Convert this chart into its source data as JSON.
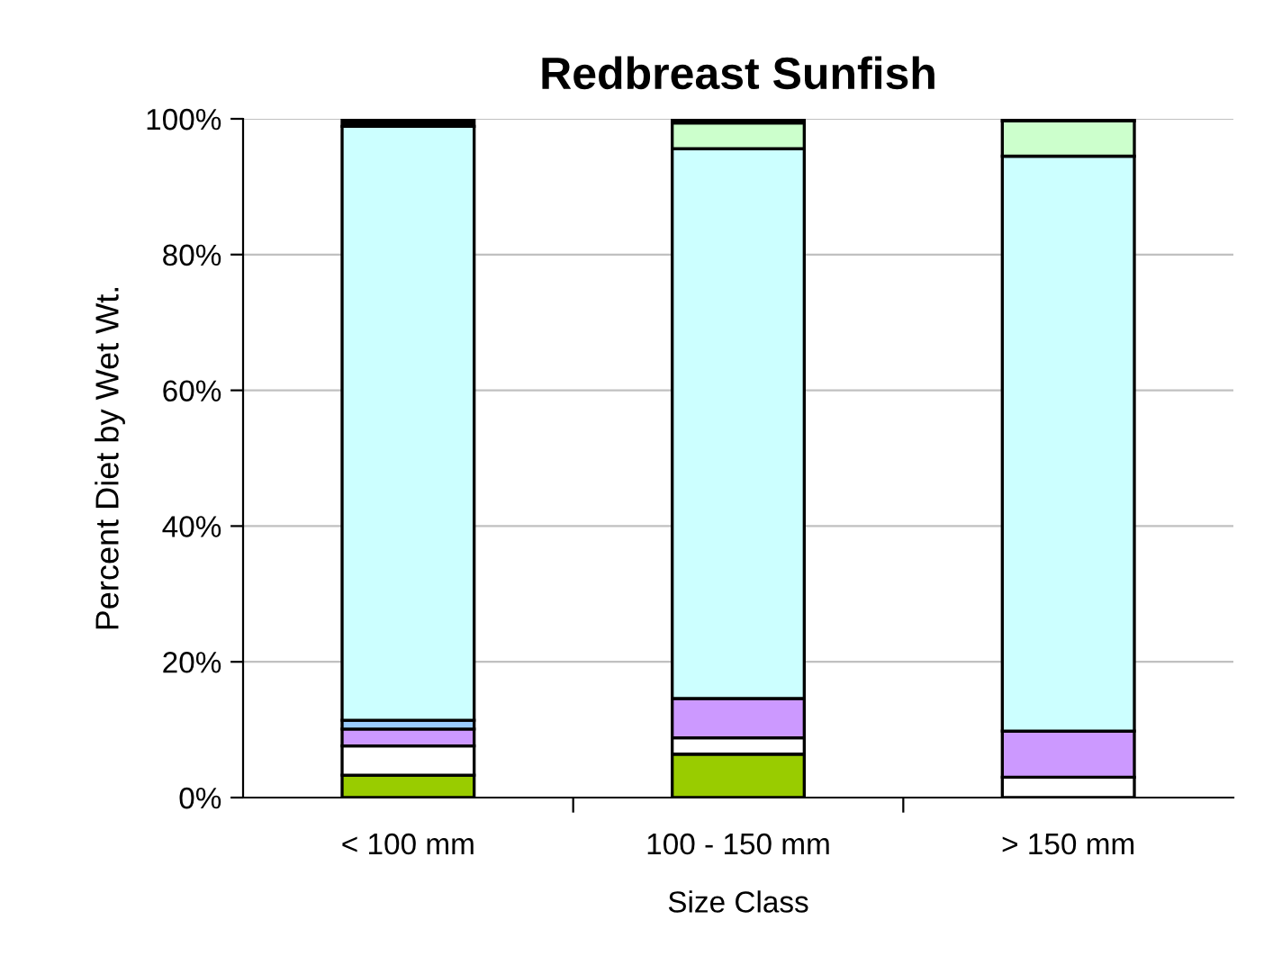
{
  "chart_data": {
    "type": "bar",
    "title": "Redbreast Sunfish",
    "xlabel": "Size Class",
    "ylabel": "Percent Diet by Wet Wt.",
    "categories": [
      "< 100 mm",
      "100 - 150 mm",
      "> 150 mm"
    ],
    "stacked": true,
    "series": [
      {
        "color": "#99cc00",
        "values": [
          3.3,
          6.4,
          0
        ]
      },
      {
        "color": "#ffffff",
        "values": [
          4.3,
          2.4,
          3.0
        ]
      },
      {
        "color": "#cc99ff",
        "values": [
          2.5,
          5.8,
          6.8
        ]
      },
      {
        "color": "#99ccff",
        "values": [
          1.3,
          0,
          0
        ]
      },
      {
        "color": "#ccffff",
        "values": [
          87.5,
          81.0,
          84.7
        ]
      },
      {
        "color": "#ccffcc",
        "values": [
          0,
          3.8,
          5.2
        ]
      },
      {
        "color": "#000000",
        "values": [
          1.1,
          0.6,
          0.3
        ]
      }
    ],
    "ylim": [
      0,
      100
    ],
    "yticks": [
      {
        "value": 0,
        "label": "0%"
      },
      {
        "value": 20,
        "label": "20%"
      },
      {
        "value": 40,
        "label": "40%"
      },
      {
        "value": 60,
        "label": "60%"
      },
      {
        "value": 80,
        "label": "80%"
      },
      {
        "value": 100,
        "label": "100%"
      }
    ],
    "grid": "y",
    "legend": false
  }
}
